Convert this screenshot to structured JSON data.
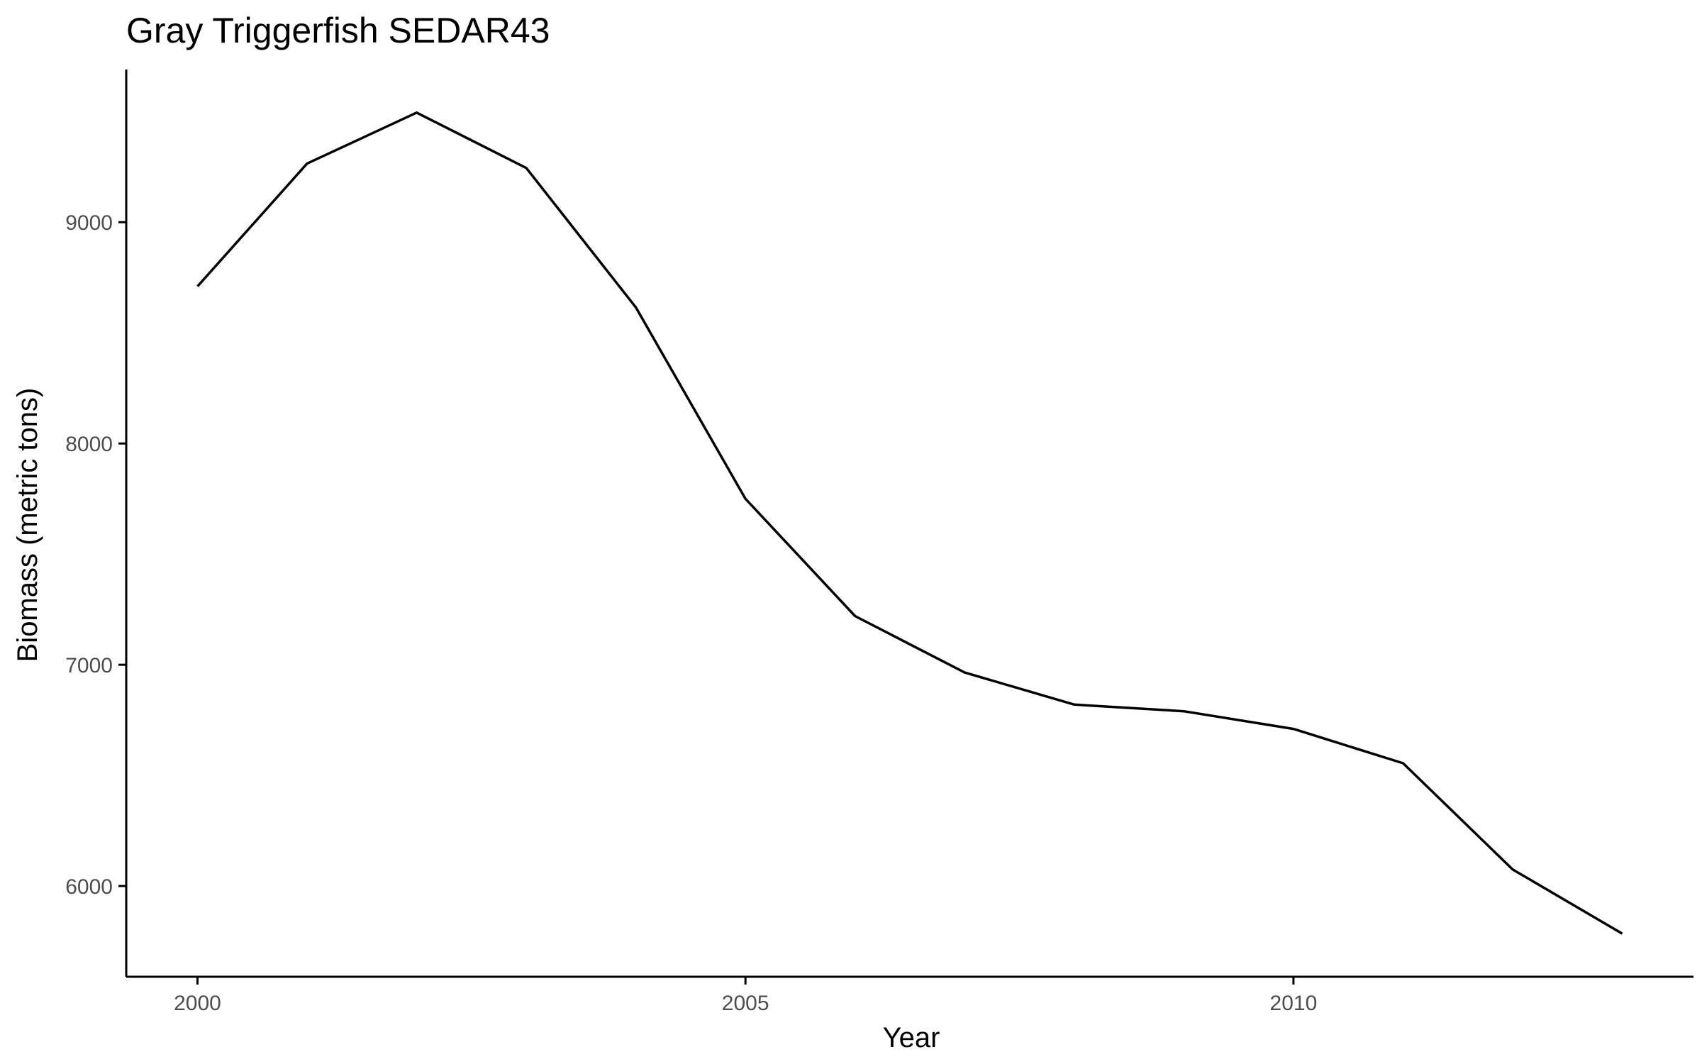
{
  "chart_data": {
    "type": "line",
    "title": "Gray Triggerfish SEDAR43",
    "xlabel": "Year",
    "ylabel": "Biomass (metric tons)",
    "x": [
      2000,
      2001,
      2002,
      2003,
      2004,
      2005,
      2006,
      2007,
      2008,
      2009,
      2010,
      2011,
      2012,
      2013
    ],
    "series": [
      {
        "values": [
          8710,
          9265,
          9495,
          9245,
          8615,
          7750,
          7220,
          6965,
          6820,
          6790,
          6710,
          6555,
          6075,
          5785
        ],
        "color": "#000000"
      }
    ],
    "xticks": [
      {
        "value": 2000,
        "label": "2000"
      },
      {
        "value": 2005,
        "label": "2005"
      },
      {
        "value": 2010,
        "label": "2010"
      }
    ],
    "yticks": [
      {
        "value": 6000,
        "label": "6000"
      },
      {
        "value": 7000,
        "label": "7000"
      },
      {
        "value": 8000,
        "label": "8000"
      },
      {
        "value": 9000,
        "label": "9000"
      }
    ],
    "xlim": [
      1999.35,
      2013.65
    ],
    "ylim": [
      5590,
      9690
    ],
    "grid": false,
    "legend": "none"
  }
}
